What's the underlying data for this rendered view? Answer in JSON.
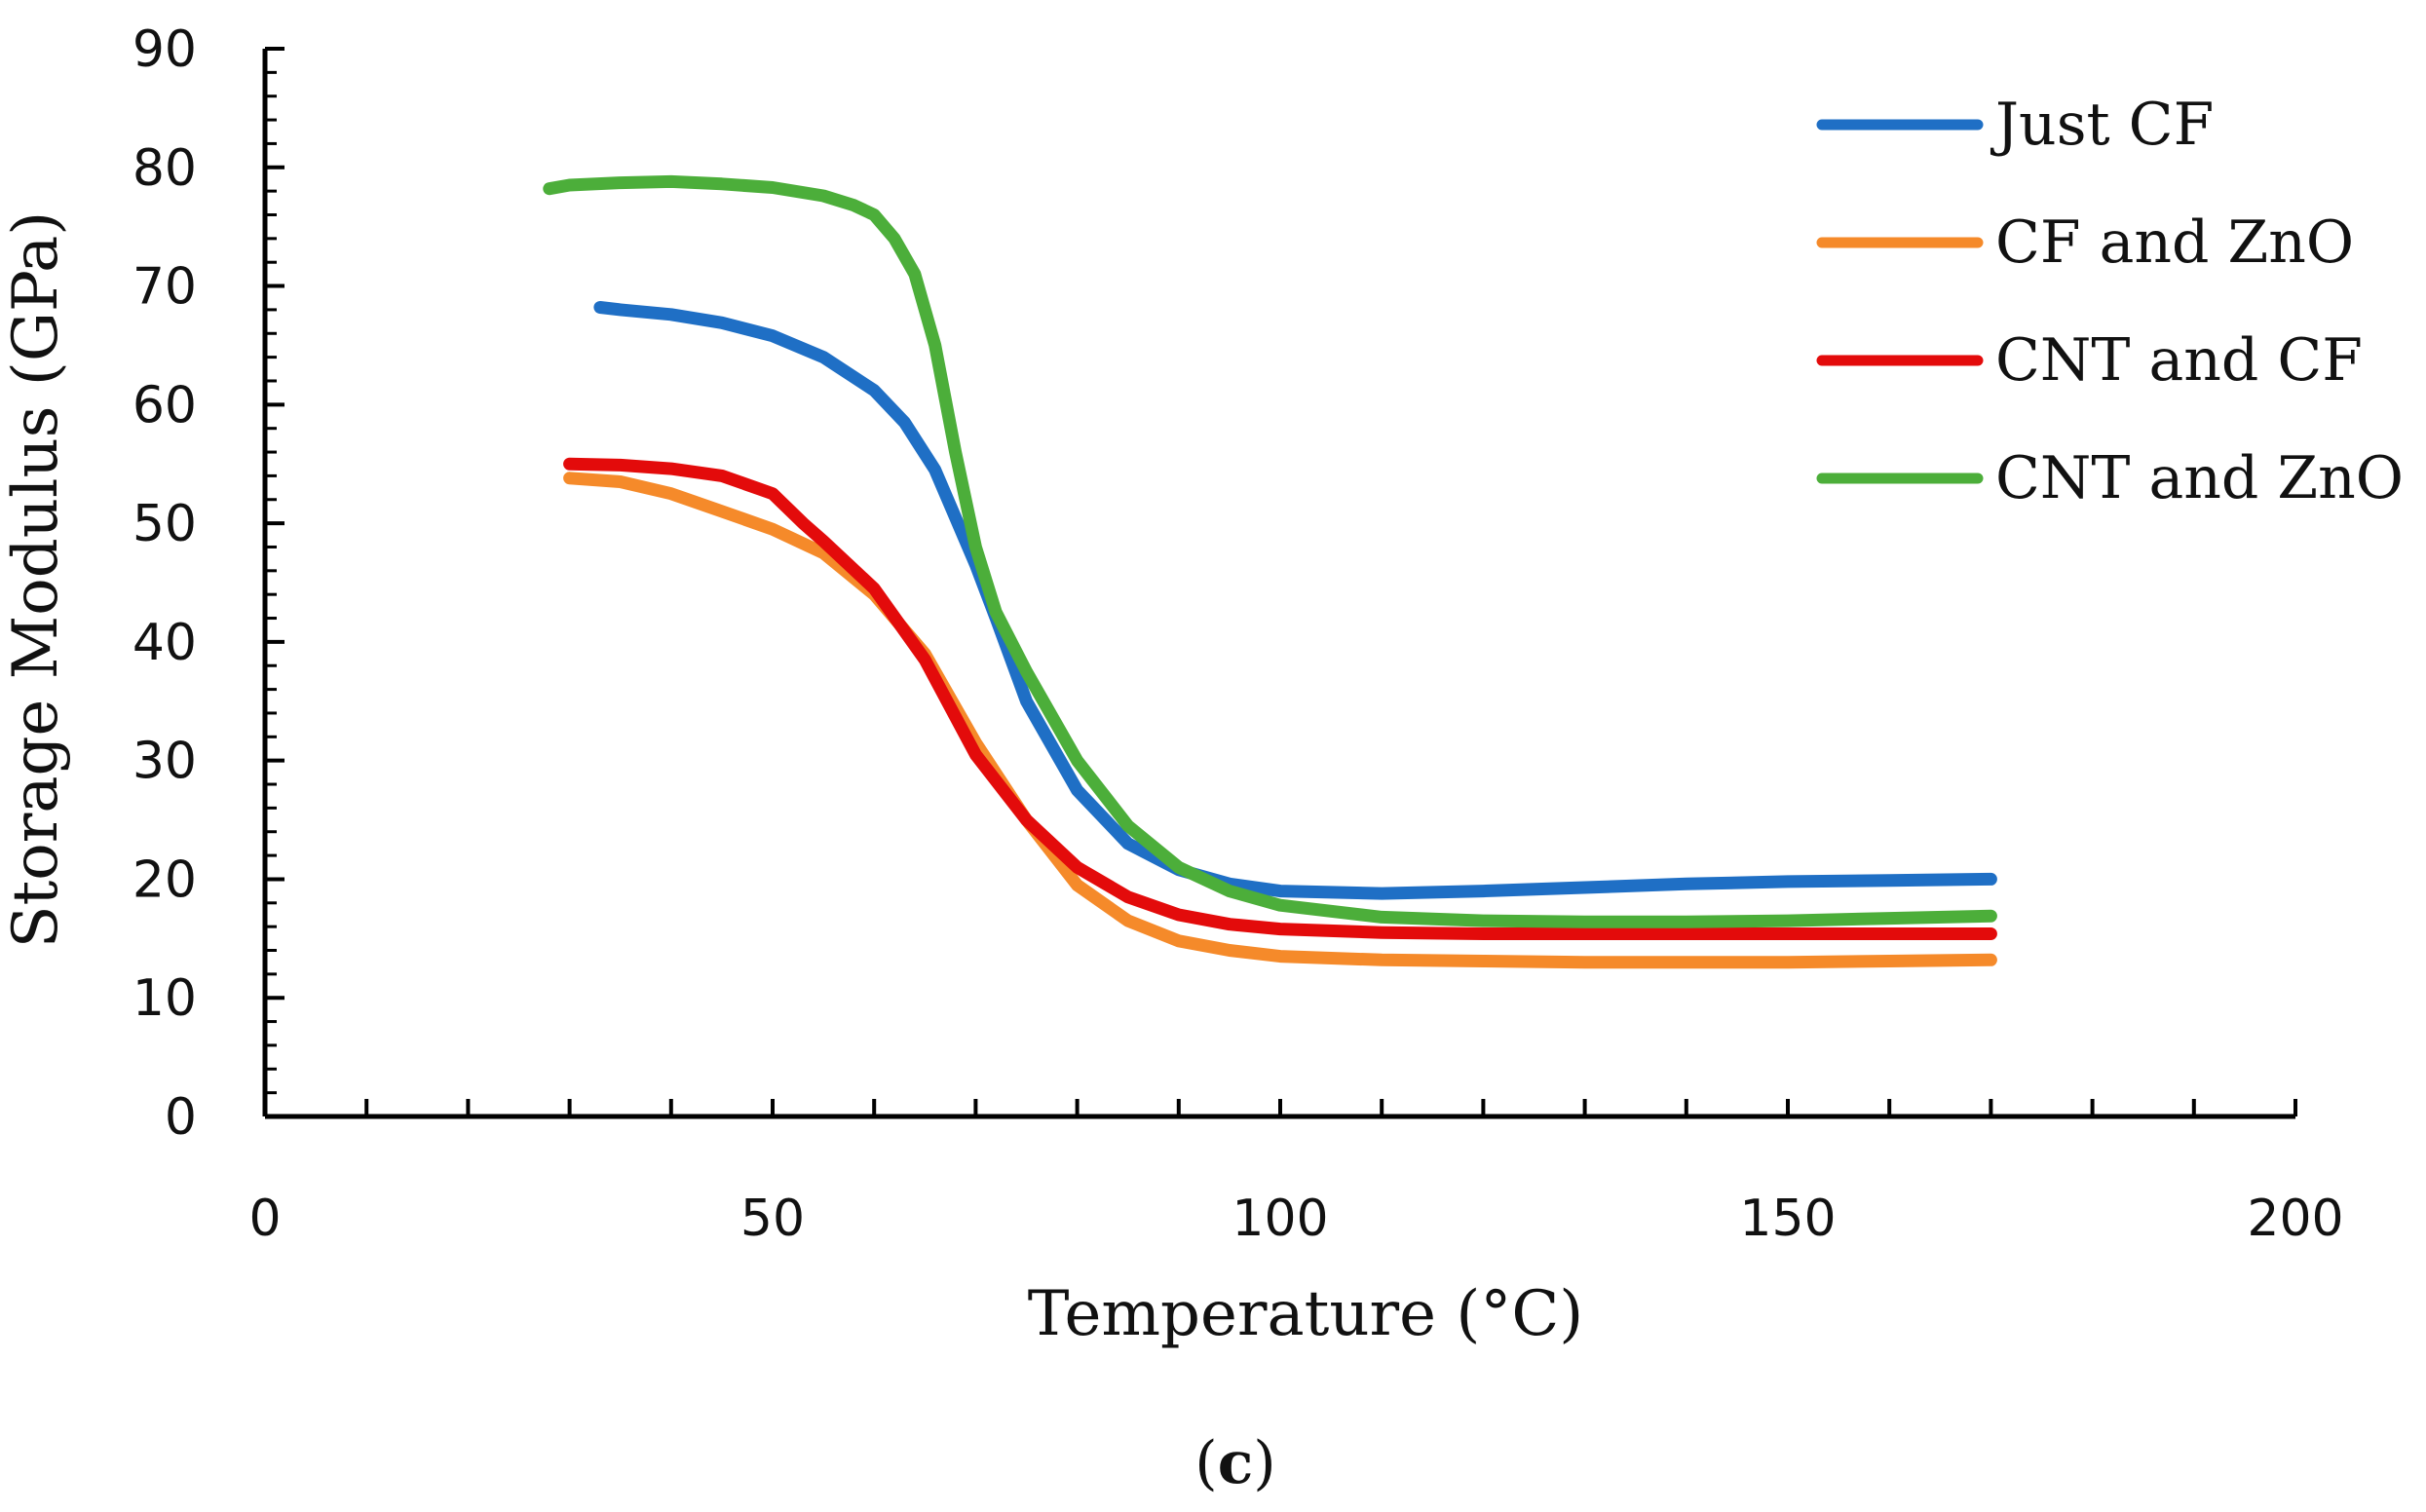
{
  "chart_data": {
    "type": "line",
    "xlabel": "Temperature (°C)",
    "ylabel": "Storage Modulus (GPa)",
    "xlim": [
      0,
      200
    ],
    "ylim": [
      0,
      90
    ],
    "xticks": [
      0,
      50,
      100,
      150,
      200
    ],
    "yticks": [
      0,
      10,
      20,
      30,
      40,
      50,
      60,
      70,
      80,
      90
    ],
    "grid": false,
    "legend_position": "top-right",
    "caption_open": "(",
    "caption_letter": "c",
    "caption_close": ")",
    "series": [
      {
        "name": "Just CF",
        "color": "#1f6fc5",
        "points": [
          [
            33,
            68.2
          ],
          [
            35,
            68.0
          ],
          [
            40,
            67.6
          ],
          [
            45,
            66.9
          ],
          [
            50,
            65.8
          ],
          [
            55,
            64.0
          ],
          [
            60,
            61.2
          ],
          [
            63,
            58.5
          ],
          [
            66,
            54.5
          ],
          [
            70,
            46.5
          ],
          [
            72,
            42.0
          ],
          [
            75,
            35.0
          ],
          [
            80,
            27.5
          ],
          [
            85,
            23.0
          ],
          [
            90,
            20.8
          ],
          [
            95,
            19.6
          ],
          [
            100,
            19.0
          ],
          [
            110,
            18.8
          ],
          [
            120,
            19.0
          ],
          [
            130,
            19.3
          ],
          [
            140,
            19.6
          ],
          [
            150,
            19.8
          ],
          [
            160,
            19.9
          ],
          [
            170,
            20.0
          ]
        ]
      },
      {
        "name": "CF and ZnO",
        "color": "#f58a2a",
        "points": [
          [
            30,
            53.8
          ],
          [
            35,
            53.5
          ],
          [
            40,
            52.5
          ],
          [
            45,
            51.0
          ],
          [
            50,
            49.5
          ],
          [
            55,
            47.5
          ],
          [
            60,
            44.0
          ],
          [
            65,
            39.0
          ],
          [
            70,
            31.5
          ],
          [
            75,
            25.0
          ],
          [
            80,
            19.5
          ],
          [
            85,
            16.5
          ],
          [
            90,
            14.8
          ],
          [
            95,
            14.0
          ],
          [
            100,
            13.5
          ],
          [
            110,
            13.2
          ],
          [
            120,
            13.1
          ],
          [
            130,
            13.0
          ],
          [
            140,
            13.0
          ],
          [
            150,
            13.0
          ],
          [
            160,
            13.1
          ],
          [
            170,
            13.2
          ]
        ]
      },
      {
        "name": "CNT and CF",
        "color": "#e30b0b",
        "points": [
          [
            30,
            55.0
          ],
          [
            35,
            54.9
          ],
          [
            40,
            54.6
          ],
          [
            45,
            54.0
          ],
          [
            50,
            52.5
          ],
          [
            53,
            50.0
          ],
          [
            55,
            48.5
          ],
          [
            60,
            44.5
          ],
          [
            65,
            38.5
          ],
          [
            70,
            30.5
          ],
          [
            75,
            25.0
          ],
          [
            80,
            21.0
          ],
          [
            85,
            18.5
          ],
          [
            90,
            17.0
          ],
          [
            95,
            16.2
          ],
          [
            100,
            15.8
          ],
          [
            110,
            15.5
          ],
          [
            120,
            15.4
          ],
          [
            130,
            15.4
          ],
          [
            140,
            15.4
          ],
          [
            150,
            15.4
          ],
          [
            160,
            15.4
          ],
          [
            170,
            15.4
          ]
        ]
      },
      {
        "name": "CNT and ZnO",
        "color": "#4cae3a",
        "points": [
          [
            28,
            78.2
          ],
          [
            30,
            78.5
          ],
          [
            35,
            78.7
          ],
          [
            40,
            78.8
          ],
          [
            45,
            78.6
          ],
          [
            50,
            78.3
          ],
          [
            55,
            77.6
          ],
          [
            58,
            76.8
          ],
          [
            60,
            76.0
          ],
          [
            62,
            74.0
          ],
          [
            64,
            71.0
          ],
          [
            66,
            65.0
          ],
          [
            68,
            56.0
          ],
          [
            70,
            48.0
          ],
          [
            72,
            42.5
          ],
          [
            75,
            37.5
          ],
          [
            80,
            30.0
          ],
          [
            85,
            24.5
          ],
          [
            90,
            21.0
          ],
          [
            95,
            19.0
          ],
          [
            100,
            17.8
          ],
          [
            110,
            16.8
          ],
          [
            120,
            16.5
          ],
          [
            130,
            16.4
          ],
          [
            140,
            16.4
          ],
          [
            150,
            16.5
          ],
          [
            160,
            16.7
          ],
          [
            170,
            16.9
          ]
        ]
      }
    ]
  }
}
